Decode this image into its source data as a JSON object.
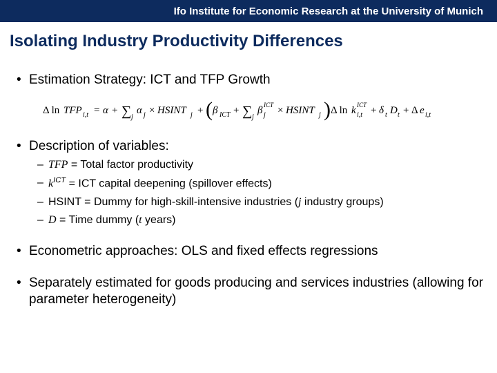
{
  "header": {
    "text": "Ifo Institute for Economic Research at the University of Munich",
    "bg_color": "#0d2b5e",
    "text_color": "#ffffff",
    "font_size": 15
  },
  "title": {
    "text": "Isolating Industry Productivity Differences",
    "color": "#0d2b5e",
    "font_size": 24
  },
  "bullets": {
    "b1": "Estimation Strategy: ICT and TFP Growth",
    "b2": "Description of variables:",
    "b3": "Econometric approaches: OLS and fixed effects regressions",
    "b4": "Separately estimated for goods producing and services industries (allowing for parameter heterogeneity)"
  },
  "sub": {
    "s1_pre": "TFP",
    "s1_rest": " = Total factor productivity",
    "s2_pre": "k",
    "s2_sup": "ICT",
    "s2_rest": " = ICT capital deepening (spillover effects)",
    "s3_pre": "HSINT = Dummy for high-skill-intensive industries (",
    "s3_j": "j",
    "s3_rest": " industry groups)",
    "s4_pre": "D",
    "s4_mid": " = Time dummy (",
    "s4_t": "t",
    "s4_rest": " years)"
  },
  "formula": {
    "font_family": "Times New Roman",
    "color": "#000000",
    "font_size_main": 15,
    "font_size_sub": 10,
    "font_size_sup": 9,
    "paren_height": 30
  }
}
